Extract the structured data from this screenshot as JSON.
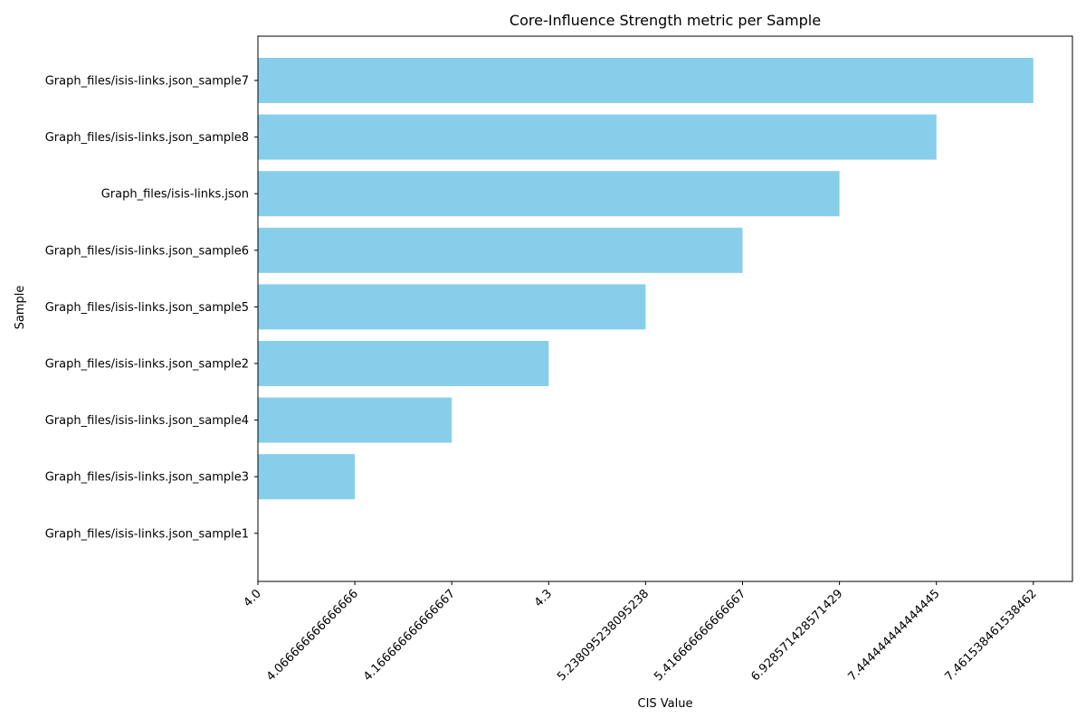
{
  "chart_data": {
    "type": "bar",
    "orientation": "horizontal",
    "title": "Core-Influence Strength metric per Sample",
    "xlabel": "CIS Value",
    "ylabel": "Sample",
    "categories": [
      "Graph_files/isis-links.json_sample7",
      "Graph_files/isis-links.json_sample8",
      "Graph_files/isis-links.json",
      "Graph_files/isis-links.json_sample6",
      "Graph_files/isis-links.json_sample5",
      "Graph_files/isis-links.json_sample2",
      "Graph_files/isis-links.json_sample4",
      "Graph_files/isis-links.json_sample3",
      "Graph_files/isis-links.json_sample1"
    ],
    "values": [
      "7.461538461538462",
      "7.444444444444445",
      "6.928571428571429",
      "5.416666666666667",
      "5.238095238095238",
      "4.3",
      "4.166666666666667",
      "4.066666666666666",
      "4.0"
    ],
    "x_tick_labels": [
      "4.0",
      "4.066666666666666",
      "4.166666666666667",
      "4.3",
      "5.238095238095238",
      "5.416666666666667",
      "6.928571428571429",
      "7.444444444444445",
      "7.461538461538462"
    ],
    "x_axis_scale": "categorical (one tick per distinct value, evenly spaced)",
    "bar_color": "#87ceeb",
    "grid": false,
    "legend": "none"
  }
}
